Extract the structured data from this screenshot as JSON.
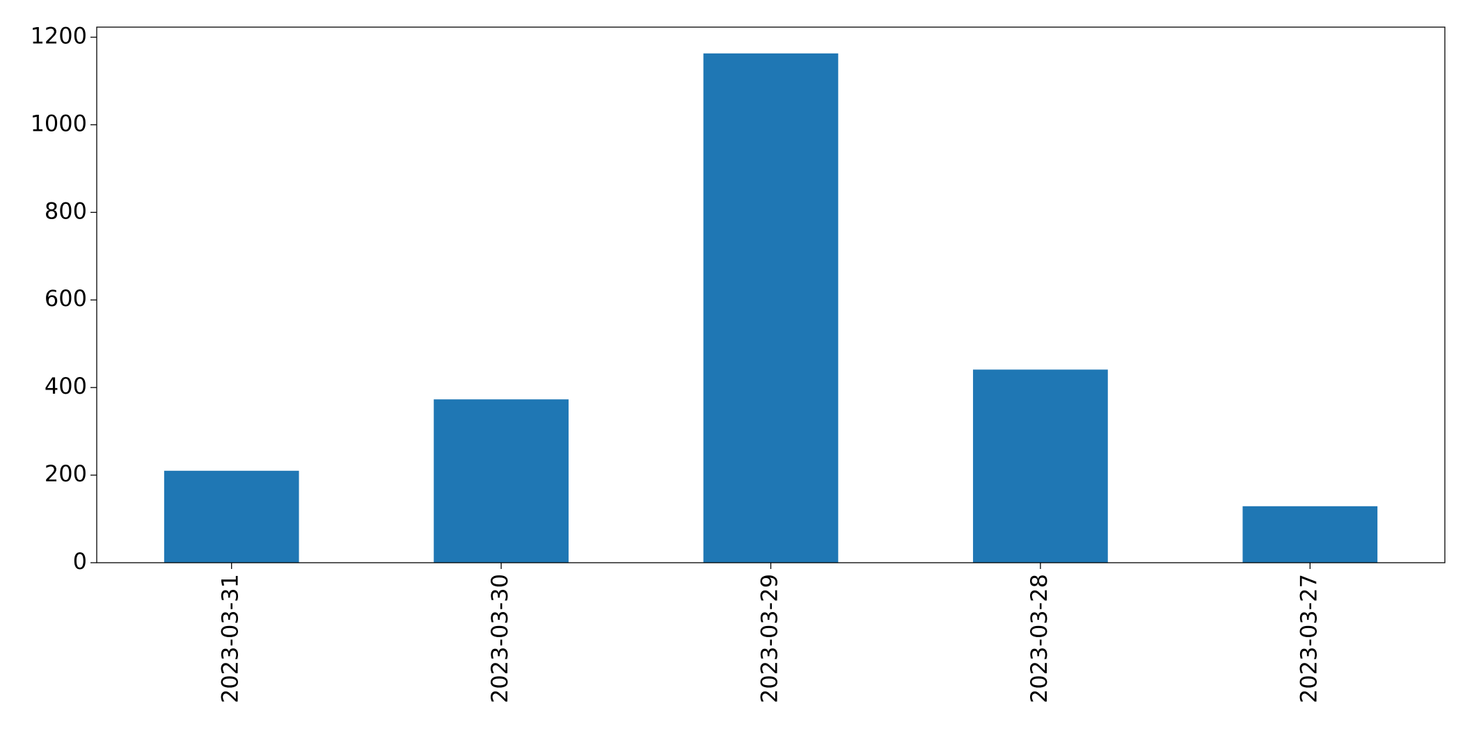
{
  "chart_data": {
    "type": "bar",
    "categories": [
      "2023-03-31",
      "2023-03-30",
      "2023-03-29",
      "2023-03-28",
      "2023-03-27"
    ],
    "values": [
      210,
      373,
      1163,
      441,
      129
    ],
    "color": "#1f77b4",
    "ylim": [
      0,
      1223
    ],
    "yticks": [
      0,
      200,
      400,
      600,
      800,
      1000,
      1200
    ],
    "grid": false
  }
}
